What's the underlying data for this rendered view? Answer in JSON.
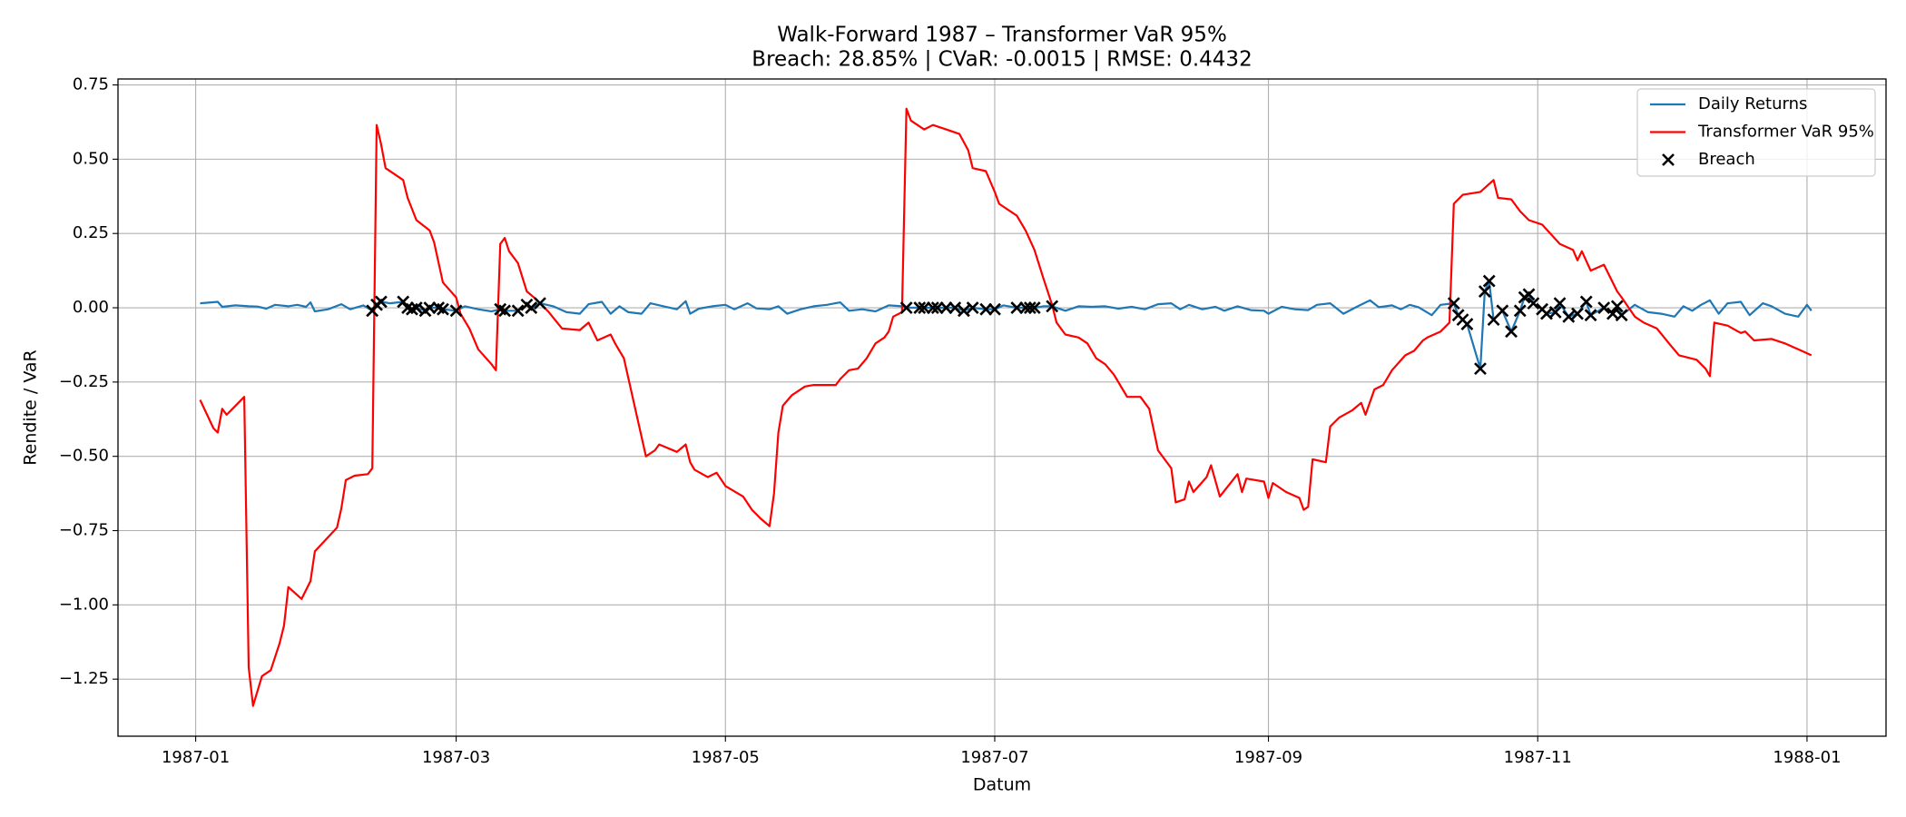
{
  "chart_data": {
    "type": "line",
    "title": "Walk-Forward 1987 – Transformer VaR 95%",
    "subtitle": "Breach: 28.85% | CVaR: -0.0015 | RMSE: 0.4432",
    "x_label": "Datum",
    "y_label": "Rendite / VaR",
    "xlim": [
      -17.6,
      382.9
    ],
    "xticks": [
      {
        "value": 0,
        "label": "1987-01"
      },
      {
        "value": 59,
        "label": "1987-03"
      },
      {
        "value": 120,
        "label": "1987-05"
      },
      {
        "value": 181,
        "label": "1987-07"
      },
      {
        "value": 243,
        "label": "1987-09"
      },
      {
        "value": 304,
        "label": "1987-11"
      },
      {
        "value": 365,
        "label": "1988-01"
      }
    ],
    "ylim": [
      -1.442,
      0.77
    ],
    "yticks": [
      {
        "value": -1.25,
        "label": "−1.25"
      },
      {
        "value": -1,
        "label": "−1.00"
      },
      {
        "value": -0.75,
        "label": "−0.75"
      },
      {
        "value": -0.5,
        "label": "−0.50"
      },
      {
        "value": -0.25,
        "label": "−0.25"
      },
      {
        "value": 0,
        "label": "0.00"
      },
      0.25,
      {
        "value": 0.5,
        "label": "0.50"
      },
      0.75
    ],
    "grid": true,
    "legend": "upper right",
    "series": [
      {
        "name": "Daily Returns",
        "type": "line",
        "color": "#1f77b4",
        "x": [
          1,
          5,
          6,
          9,
          12,
          14,
          16,
          18,
          21,
          23,
          25,
          26,
          27,
          30,
          33,
          35,
          38,
          40,
          41,
          42,
          44,
          47,
          48,
          49,
          50,
          52,
          53,
          55,
          56,
          59,
          61,
          64,
          67,
          69,
          70,
          73,
          75,
          76,
          78,
          81,
          84,
          87,
          89,
          92,
          94,
          96,
          98,
          101,
          103,
          106,
          109,
          111,
          112,
          114,
          117,
          120,
          122,
          125,
          127,
          130,
          132,
          134,
          137,
          140,
          143,
          146,
          148,
          151,
          154,
          157,
          160,
          161,
          164,
          165,
          167,
          168,
          170,
          172,
          174,
          176,
          179,
          181,
          183,
          186,
          188,
          189,
          190,
          192,
          194,
          197,
          200,
          203,
          206,
          209,
          212,
          215,
          218,
          221,
          223,
          225,
          228,
          231,
          233,
          236,
          239,
          242,
          243,
          246,
          249,
          252,
          254,
          257,
          260,
          263,
          266,
          268,
          271,
          273,
          275,
          277,
          280,
          282,
          285,
          286,
          287,
          288,
          291,
          292,
          293,
          294,
          296,
          298,
          300,
          301,
          302,
          303,
          305,
          306,
          308,
          309,
          311,
          313,
          315,
          316,
          319,
          321,
          322,
          323,
          326,
          329,
          332,
          335,
          337,
          339,
          341,
          343,
          345,
          347,
          350,
          352,
          355,
          357,
          360,
          363,
          365,
          366
        ],
        "values": [
          0.015,
          0.02,
          0.003,
          0.008,
          0.005,
          0.004,
          -0.003,
          0.01,
          0.005,
          0.01,
          0.003,
          0.018,
          -0.012,
          -0.005,
          0.012,
          -0.005,
          0.008,
          -0.01,
          0.01,
          0.02,
          0.015,
          0.02,
          0,
          -0.005,
          0,
          -0.01,
          0,
          0,
          -0.005,
          -0.01,
          0.005,
          -0.005,
          -0.012,
          -0.005,
          -0.01,
          -0.01,
          0.01,
          0,
          0.015,
          0.005,
          -0.015,
          -0.02,
          0.012,
          0.02,
          -0.02,
          0.005,
          -0.015,
          -0.02,
          0.015,
          0.005,
          -0.005,
          0.022,
          -0.02,
          -0.003,
          0.005,
          0.01,
          -0.005,
          0.015,
          -0.002,
          -0.005,
          0.005,
          -0.02,
          -0.005,
          0.005,
          0.01,
          0.018,
          -0.01,
          -0.005,
          -0.012,
          0.008,
          0.005,
          0,
          0,
          0,
          0,
          0,
          0,
          0,
          -0.01,
          0,
          -0.005,
          -0.005,
          0.008,
          0,
          0,
          0,
          0,
          0.005,
          0.005,
          -0.01,
          0.005,
          0.003,
          0.005,
          -0.003,
          0.003,
          -0.005,
          0.012,
          0.015,
          -0.005,
          0.01,
          -0.005,
          0.003,
          -0.01,
          0.005,
          -0.008,
          -0.01,
          -0.02,
          0.003,
          -0.005,
          -0.008,
          0.01,
          0.015,
          -0.02,
          0.003,
          0.025,
          0.002,
          0.008,
          -0.005,
          0.01,
          0.002,
          -0.025,
          0.01,
          0.015,
          -0.025,
          -0.04,
          -0.055,
          -0.205,
          0.055,
          0.09,
          -0.04,
          -0.01,
          -0.08,
          -0.01,
          0.035,
          0.045,
          0.015,
          -0.005,
          -0.02,
          -0.015,
          0.015,
          -0.03,
          -0.02,
          0.02,
          -0.025,
          0,
          -0.02,
          0.005,
          -0.025,
          0.01,
          -0.015,
          -0.02,
          -0.03,
          0.005,
          -0.01,
          0.01,
          0.025,
          -0.02,
          0.015,
          0.02,
          -0.025,
          0.015,
          0.005,
          -0.02,
          -0.03,
          0.01,
          -0.01
        ]
      },
      {
        "name": "Transformer VaR 95%",
        "type": "line",
        "color": "#ff0000",
        "x": [
          1,
          4,
          5,
          6,
          7,
          11,
          12,
          13,
          15,
          17,
          19,
          20,
          21,
          24,
          26,
          27,
          32,
          33,
          34,
          36,
          39,
          40,
          41,
          42,
          43,
          47,
          48,
          50,
          53,
          54,
          56,
          59,
          60,
          62,
          64,
          67,
          68,
          69,
          70,
          71,
          73,
          75,
          77,
          80,
          83,
          87,
          89,
          91,
          94,
          95,
          97,
          102,
          104,
          105,
          109,
          111,
          112,
          113,
          116,
          118,
          120,
          124,
          126,
          128,
          130,
          131,
          132,
          133,
          135,
          138,
          140,
          145,
          146,
          148,
          150,
          152,
          154,
          156,
          157,
          158,
          160,
          161,
          162,
          165,
          167,
          170,
          173,
          175,
          176,
          179,
          181,
          182,
          186,
          188,
          190,
          192,
          194,
          195,
          197,
          200,
          202,
          204,
          206,
          208,
          210,
          211,
          214,
          216,
          218,
          221,
          222,
          224,
          225,
          226,
          229,
          230,
          232,
          236,
          237,
          238,
          242,
          243,
          244,
          247,
          250,
          251,
          252,
          253,
          256,
          257,
          259,
          262,
          264,
          265,
          267,
          269,
          271,
          274,
          276,
          278,
          279,
          282,
          284,
          285,
          287,
          291,
          294,
          295,
          298,
          300,
          302,
          305,
          309,
          312,
          313,
          314,
          316,
          319,
          322,
          323,
          326,
          328,
          331,
          334,
          336,
          340,
          342,
          343,
          344,
          347,
          350,
          351,
          353,
          357,
          360,
          363,
          366
        ],
        "values": [
          -0.31,
          -0.405,
          -0.42,
          -0.34,
          -0.36,
          -0.3,
          -1.21,
          -1.34,
          -1.24,
          -1.22,
          -1.13,
          -1.07,
          -0.94,
          -0.98,
          -0.92,
          -0.82,
          -0.74,
          -0.675,
          -0.58,
          -0.565,
          -0.56,
          -0.54,
          0.615,
          0.55,
          0.47,
          0.43,
          0.37,
          0.295,
          0.26,
          0.22,
          0.085,
          0.035,
          -0.02,
          -0.07,
          -0.14,
          -0.19,
          -0.21,
          0.215,
          0.235,
          0.19,
          0.15,
          0.055,
          0.03,
          -0.015,
          -0.07,
          -0.075,
          -0.05,
          -0.11,
          -0.09,
          -0.12,
          -0.17,
          -0.5,
          -0.48,
          -0.46,
          -0.485,
          -0.46,
          -0.52,
          -0.545,
          -0.57,
          -0.555,
          -0.6,
          -0.635,
          -0.68,
          -0.71,
          -0.735,
          -0.625,
          -0.42,
          -0.33,
          -0.295,
          -0.265,
          -0.26,
          -0.26,
          -0.24,
          -0.21,
          -0.205,
          -0.17,
          -0.12,
          -0.1,
          -0.08,
          -0.03,
          -0.015,
          0.67,
          0.63,
          0.6,
          0.615,
          0.6,
          0.585,
          0.53,
          0.47,
          0.46,
          0.39,
          0.35,
          0.31,
          0.26,
          0.195,
          0.1,
          0.01,
          -0.05,
          -0.09,
          -0.1,
          -0.12,
          -0.17,
          -0.19,
          -0.225,
          -0.275,
          -0.3,
          -0.3,
          -0.34,
          -0.48,
          -0.54,
          -0.655,
          -0.645,
          -0.585,
          -0.62,
          -0.57,
          -0.53,
          -0.635,
          -0.56,
          -0.62,
          -0.575,
          -0.585,
          -0.64,
          -0.59,
          -0.62,
          -0.64,
          -0.68,
          -0.67,
          -0.51,
          -0.52,
          -0.4,
          -0.37,
          -0.345,
          -0.32,
          -0.36,
          -0.275,
          -0.26,
          -0.21,
          -0.16,
          -0.145,
          -0.11,
          -0.1,
          -0.08,
          -0.05,
          0.35,
          0.38,
          0.39,
          0.43,
          0.37,
          0.365,
          0.325,
          0.295,
          0.28,
          0.215,
          0.195,
          0.16,
          0.19,
          0.125,
          0.145,
          0.055,
          0.035,
          -0.03,
          -0.05,
          -0.07,
          -0.125,
          -0.16,
          -0.175,
          -0.205,
          -0.23,
          -0.05,
          -0.06,
          -0.085,
          -0.08,
          -0.11,
          -0.105,
          -0.12,
          -0.14,
          -0.16
        ]
      },
      {
        "name": "Breach",
        "type": "scatter",
        "marker": "x",
        "color": "#000000",
        "x": [
          40,
          41,
          42,
          47,
          48,
          49,
          50,
          52,
          53,
          55,
          56,
          59,
          69,
          70,
          73,
          75,
          76,
          78,
          161,
          164,
          165,
          167,
          168,
          170,
          172,
          174,
          176,
          179,
          181,
          186,
          188,
          189,
          190,
          194,
          285,
          286,
          287,
          288,
          291,
          292,
          293,
          294,
          296,
          298,
          300,
          301,
          302,
          303,
          305,
          306,
          308,
          309,
          311,
          313,
          315,
          316,
          319,
          321,
          322,
          323
        ],
        "values": [
          -0.01,
          0.01,
          0.02,
          0.02,
          0,
          -0.005,
          0,
          -0.01,
          0,
          0,
          -0.005,
          -0.01,
          -0.005,
          -0.01,
          -0.01,
          0.01,
          0,
          0.015,
          0,
          0,
          0,
          0,
          0,
          0,
          0,
          -0.01,
          0,
          -0.005,
          -0.005,
          0,
          0,
          0,
          0,
          0.005,
          0.015,
          -0.025,
          -0.04,
          -0.055,
          -0.205,
          0.055,
          0.09,
          -0.04,
          -0.01,
          -0.08,
          -0.01,
          0.035,
          0.045,
          0.015,
          -0.005,
          -0.02,
          -0.015,
          0.015,
          -0.03,
          -0.02,
          0.02,
          -0.025,
          0,
          -0.02,
          0.005,
          -0.025
        ]
      }
    ]
  }
}
